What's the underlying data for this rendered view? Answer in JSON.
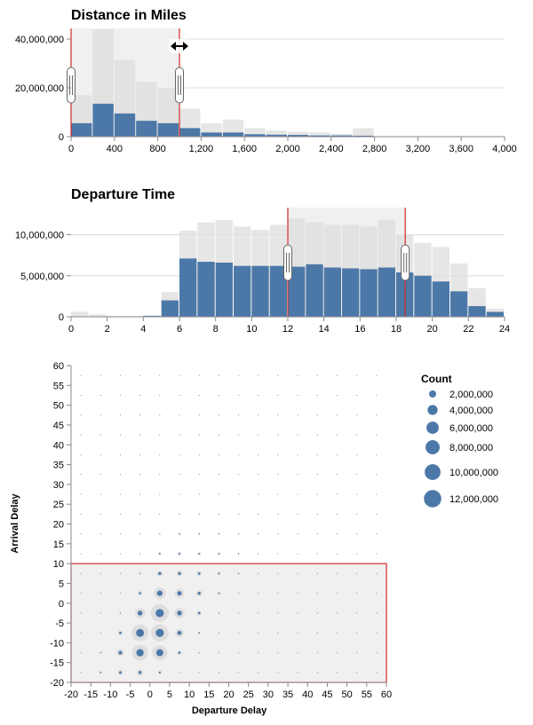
{
  "colors": {
    "bar_selected": "#4c78a8",
    "bar_background": "#dedede",
    "brush_fill": "#f0f0f0",
    "brush_stroke": "#d62728",
    "grid": "#dddddd",
    "axis": "#888888",
    "point_halo": "#d9d9d9"
  },
  "chart_data": [
    {
      "type": "bar",
      "title": "Distance in Miles",
      "bin_width": 200,
      "xlim": [
        0,
        4000
      ],
      "ylim": [
        0,
        40000000
      ],
      "x_ticks": [
        0,
        400,
        800,
        1200,
        1600,
        2000,
        2400,
        2800,
        3200,
        3600,
        4000
      ],
      "x_tick_labels": [
        "0",
        "400",
        "800",
        "1,200",
        "1,600",
        "2,000",
        "2,400",
        "2,800",
        "3,200",
        "3,600",
        "4,000"
      ],
      "y_ticks": [
        0,
        20000000,
        40000000
      ],
      "y_tick_labels": [
        "0",
        "20,000,000",
        "40,000,000"
      ],
      "bins": [
        0,
        200,
        400,
        600,
        800,
        1000,
        1200,
        1400,
        1600,
        1800,
        2000,
        2200,
        2400,
        2600,
        2800,
        3000,
        3200,
        3400,
        3600,
        3800
      ],
      "series": [
        {
          "role": "all",
          "values": [
            17000000,
            44000000,
            31500000,
            22500000,
            20000000,
            11500000,
            5500000,
            7000000,
            3500000,
            2500000,
            2000000,
            1700000,
            1200000,
            3500000,
            0,
            0,
            0,
            0,
            0,
            0
          ]
        },
        {
          "role": "filtered",
          "values": [
            5500000,
            13500000,
            9500000,
            6500000,
            5500000,
            3500000,
            1700000,
            1700000,
            1000000,
            800000,
            700000,
            500000,
            500000,
            400000,
            0,
            0,
            0,
            0,
            0,
            0
          ]
        }
      ],
      "brush": [
        0,
        1000
      ],
      "grid": true,
      "cursor_icon": "resize-horizontal-icon"
    },
    {
      "type": "bar",
      "title": "Departure Time",
      "bin_width": 1,
      "xlim": [
        0,
        24
      ],
      "ylim": [
        0,
        12000000
      ],
      "x_ticks": [
        0,
        2,
        4,
        6,
        8,
        10,
        12,
        14,
        16,
        18,
        20,
        22,
        24
      ],
      "x_tick_labels": [
        "0",
        "2",
        "4",
        "6",
        "8",
        "10",
        "12",
        "14",
        "16",
        "18",
        "20",
        "22",
        "24"
      ],
      "y_ticks": [
        0,
        5000000,
        10000000
      ],
      "y_tick_labels": [
        "0",
        "5,000,000",
        "10,000,000"
      ],
      "bins": [
        0,
        1,
        2,
        3,
        4,
        5,
        6,
        7,
        8,
        9,
        10,
        11,
        12,
        13,
        14,
        15,
        16,
        17,
        18,
        19,
        20,
        21,
        22,
        23
      ],
      "series": [
        {
          "role": "all",
          "values": [
            600000,
            300000,
            100000,
            100000,
            200000,
            3000000,
            10500000,
            11500000,
            11800000,
            11000000,
            10600000,
            11200000,
            12000000,
            11500000,
            11200000,
            11200000,
            11000000,
            11800000,
            10000000,
            9000000,
            8500000,
            6500000,
            3500000,
            1000000
          ]
        },
        {
          "role": "filtered",
          "values": [
            0,
            0,
            0,
            0,
            100000,
            2000000,
            7100000,
            6700000,
            6600000,
            6200000,
            6200000,
            6200000,
            6100000,
            6400000,
            6000000,
            5900000,
            5800000,
            6000000,
            5400000,
            5000000,
            4300000,
            3100000,
            1300000,
            600000
          ]
        }
      ],
      "brush": [
        12,
        18.5
      ],
      "grid": true
    },
    {
      "type": "scatter",
      "xlabel": "Departure Delay",
      "ylabel": "Arrival Delay",
      "xlim": [
        -20,
        60
      ],
      "ylim": [
        -20,
        60
      ],
      "x_ticks": [
        -20,
        -15,
        -10,
        -5,
        0,
        5,
        10,
        15,
        20,
        25,
        30,
        35,
        40,
        45,
        50,
        55,
        60
      ],
      "y_ticks": [
        -20,
        -15,
        -10,
        -5,
        0,
        5,
        10,
        15,
        20,
        25,
        30,
        35,
        40,
        45,
        50,
        55,
        60
      ],
      "size_legend": {
        "title": "Count",
        "values": [
          2000000,
          4000000,
          6000000,
          8000000,
          10000000,
          12000000
        ],
        "labels": [
          "2,000,000",
          "4,000,000",
          "6,000,000",
          "8,000,000",
          "10,000,000",
          "12,000,000"
        ]
      },
      "brush": {
        "x": [
          -20,
          60
        ],
        "y": [
          -20,
          10
        ]
      },
      "grid": false,
      "x": [
        -17.5,
        -12.5,
        -7.5,
        -2.5,
        2.5,
        7.5,
        12.5,
        17.5,
        22.5,
        27.5,
        32.5,
        37.5,
        42.5,
        47.5,
        52.5,
        57.5
      ],
      "y": [
        -17.5,
        -12.5,
        -7.5,
        -2.5,
        2.5,
        7.5,
        12.5,
        17.5,
        22.5,
        27.5,
        32.5,
        37.5,
        42.5,
        47.5,
        52.5,
        57.5
      ],
      "all_counts": [
        [
          60000,
          300000,
          1200000,
          1600000,
          600000,
          100000,
          30000,
          10000,
          5000,
          3000,
          2000,
          1500,
          1000,
          1000,
          500,
          500
        ],
        [
          10000,
          200000,
          2200000,
          10000000,
          9000000,
          900000,
          150000,
          30000,
          10000,
          5000,
          3000,
          2000,
          1500,
          1000,
          500,
          500
        ],
        [
          5000,
          60000,
          1000000,
          11500000,
          12000000,
          3000000,
          400000,
          60000,
          20000,
          10000,
          5000,
          3000,
          2000,
          1500,
          1000,
          800
        ],
        [
          2000,
          20000,
          200000,
          4000000,
          12500000,
          4200000,
          1000000,
          200000,
          50000,
          15000,
          8000,
          5000,
          3000,
          2000,
          1500,
          1000
        ],
        [
          1000,
          8000,
          60000,
          800000,
          5500000,
          3500000,
          1500000,
          400000,
          120000,
          40000,
          15000,
          8000,
          5000,
          3000,
          2000,
          1500
        ],
        [
          500,
          3000,
          20000,
          200000,
          1500000,
          1500000,
          1000000,
          500000,
          200000,
          70000,
          25000,
          12000,
          7000,
          4000,
          2500,
          1500
        ],
        [
          300,
          1500,
          8000,
          60000,
          400000,
          550000,
          450000,
          350000,
          200000,
          100000,
          40000,
          15000,
          8000,
          5000,
          3000,
          2000
        ],
        [
          200,
          1000,
          4000,
          25000,
          150000,
          250000,
          220000,
          200000,
          160000,
          100000,
          50000,
          20000,
          10000,
          6000,
          3500,
          2000
        ],
        [
          150,
          600,
          2500,
          12000,
          60000,
          110000,
          110000,
          100000,
          90000,
          75000,
          50000,
          25000,
          12000,
          7000,
          4000,
          2500
        ],
        [
          100,
          400,
          1500,
          7000,
          30000,
          55000,
          60000,
          60000,
          55000,
          50000,
          40000,
          25000,
          14000,
          8000,
          4500,
          2800
        ],
        [
          80,
          300,
          1000,
          4000,
          16000,
          30000,
          35000,
          35000,
          33000,
          32000,
          28000,
          22000,
          14000,
          8500,
          5000,
          3000
        ],
        [
          60,
          200,
          700,
          2500,
          9000,
          17000,
          20000,
          21000,
          20000,
          19000,
          18000,
          16000,
          12000,
          8500,
          5000,
          3200
        ],
        [
          50,
          150,
          500,
          1600,
          5500,
          10000,
          12000,
          12500,
          12500,
          12000,
          11500,
          10500,
          9500,
          7500,
          5000,
          3300
        ],
        [
          40,
          120,
          350,
          1100,
          3500,
          6000,
          7500,
          8000,
          8000,
          7800,
          7500,
          7000,
          6500,
          6000,
          4800,
          3300
        ],
        [
          30,
          100,
          250,
          800,
          2200,
          4000,
          5000,
          5200,
          5200,
          5000,
          4800,
          4500,
          4300,
          4000,
          3800,
          3200
        ],
        [
          25,
          80,
          200,
          600,
          1500,
          2700,
          3300,
          3500,
          3500,
          3400,
          3300,
          3100,
          2900,
          2700,
          2600,
          2500
        ]
      ],
      "filtered_counts": [
        [
          15000,
          80000,
          250000,
          350000,
          150000,
          20000,
          6000,
          2000,
          1000,
          600,
          400,
          300,
          200,
          200,
          100,
          100
        ],
        [
          3000,
          50000,
          500000,
          2200000,
          2000000,
          200000,
          30000,
          6000,
          2000,
          1000,
          600,
          400,
          300,
          200,
          100,
          100
        ],
        [
          1000,
          15000,
          220000,
          2500000,
          2600000,
          650000,
          80000,
          12000,
          4000,
          2000,
          1000,
          600,
          400,
          300,
          200,
          150
        ],
        [
          500,
          5000,
          45000,
          900000,
          2700000,
          900000,
          220000,
          40000,
          10000,
          3000,
          1500,
          1000,
          600,
          400,
          300,
          200
        ],
        [
          200,
          2000,
          14000,
          180000,
          1200000,
          750000,
          320000,
          85000,
          25000,
          8000,
          3000,
          1500,
          1000,
          600,
          400,
          300
        ],
        [
          100,
          600,
          4000,
          45000,
          330000,
          330000,
          220000,
          110000,
          45000,
          15000,
          5000,
          2500,
          1500,
          800,
          500,
          300
        ],
        [
          60,
          300,
          1500,
          12000,
          90000,
          120000,
          100000,
          75000,
          45000,
          22000,
          9000,
          3000,
          1600,
          1000,
          600,
          400
        ],
        [
          40,
          200,
          800,
          5000,
          33000,
          55000,
          48000,
          44000,
          35000,
          22000,
          11000,
          4000,
          2000,
          1200,
          700,
          400
        ],
        [
          30,
          120,
          500,
          2500,
          13000,
          24000,
          24000,
          22000,
          20000,
          16500,
          11000,
          5500,
          2500,
          1400,
          800,
          500
        ],
        [
          20,
          80,
          300,
          1400,
          6500,
          12000,
          13000,
          13000,
          12000,
          11000,
          9000,
          5500,
          3000,
          1600,
          900,
          550
        ],
        [
          15,
          60,
          200,
          800,
          3500,
          6500,
          7500,
          7500,
          7200,
          7000,
          6200,
          4800,
          3000,
          1800,
          1000,
          600
        ],
        [
          12,
          40,
          140,
          500,
          2000,
          3700,
          4400,
          4600,
          4400,
          4200,
          4000,
          3500,
          2600,
          1800,
          1000,
          650
        ],
        [
          10,
          30,
          100,
          330,
          1200,
          2200,
          2600,
          2700,
          2700,
          2600,
          2500,
          2300,
          2100,
          1600,
          1000,
          700
        ],
        [
          8,
          25,
          70,
          230,
          750,
          1300,
          1600,
          1750,
          1750,
          1700,
          1650,
          1550,
          1400,
          1300,
          1000,
          700
        ],
        [
          6,
          20,
          50,
          160,
          480,
          870,
          1100,
          1150,
          1150,
          1100,
          1050,
          1000,
          950,
          870,
          830,
          700
        ],
        [
          5,
          16,
          40,
          120,
          330,
          600,
          720,
          770,
          770,
          750,
          720,
          680,
          640,
          600,
          570,
          550
        ]
      ]
    }
  ]
}
